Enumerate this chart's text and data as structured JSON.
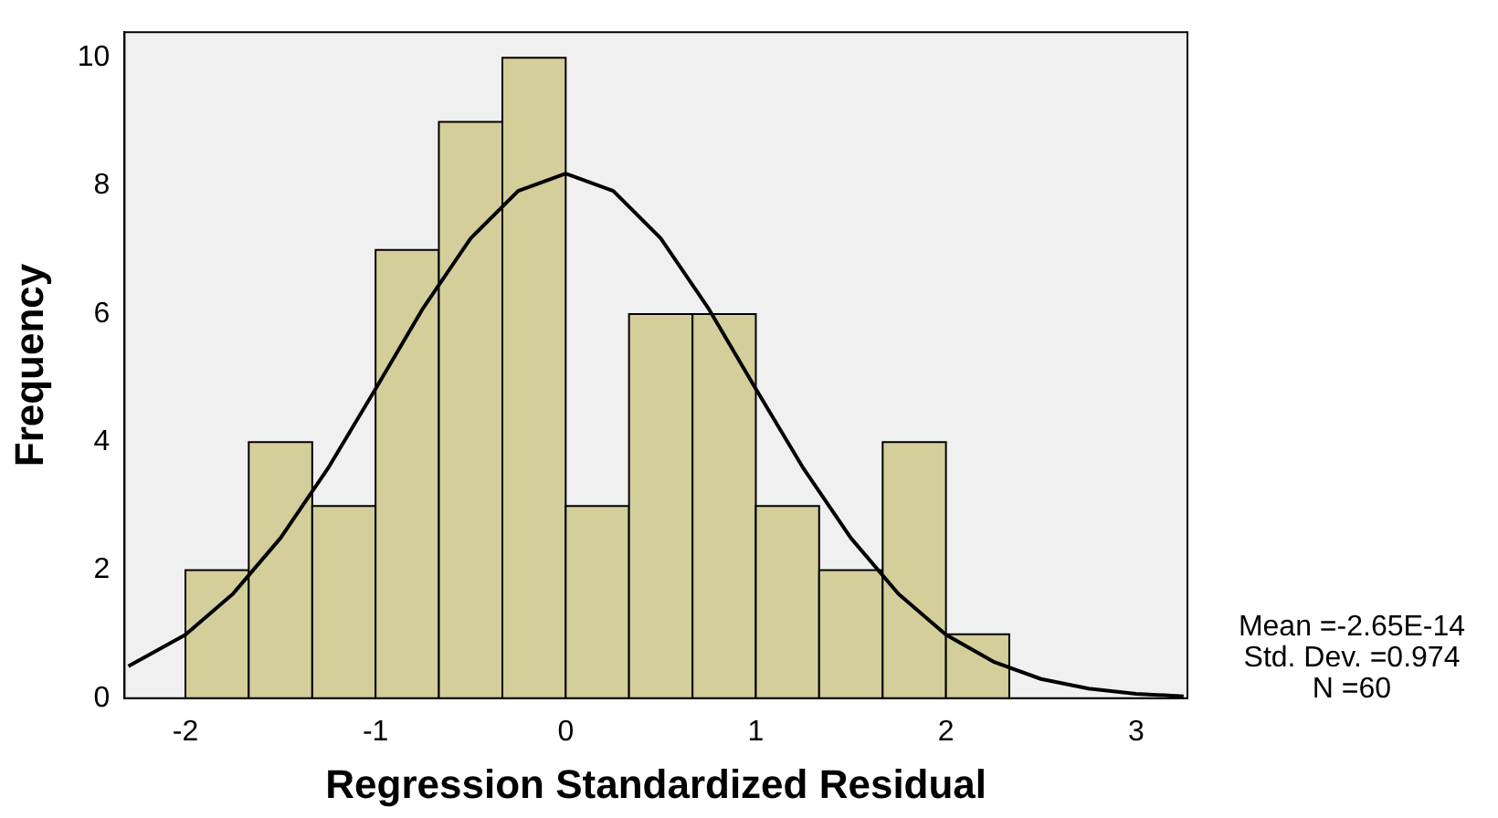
{
  "chart_data": {
    "type": "histogram",
    "xlabel": "Regression Standardized Residual",
    "ylabel": "Frequency",
    "bins": [
      -2,
      -1.667,
      -1.333,
      -1,
      -0.667,
      -0.333,
      0,
      0.333,
      0.667,
      1,
      1.333,
      1.667,
      2,
      2.333
    ],
    "values": [
      2,
      4,
      3,
      7,
      9,
      10,
      3,
      6,
      6,
      3,
      2,
      4,
      1
    ],
    "color": "#d3ce9a",
    "series": [
      {
        "type": "line",
        "color": "#000000",
        "x": [
          -2.3,
          -2,
          -1.75,
          -1.5,
          -1.25,
          -1,
          -0.75,
          -0.5,
          -0.25,
          0,
          0.25,
          0.5,
          0.75,
          1,
          1.25,
          1.5,
          1.75,
          2,
          2.25,
          2.5,
          2.75,
          3,
          3.25
        ],
        "values": [
          0.5,
          0.99,
          1.63,
          2.5,
          3.59,
          4.83,
          6.09,
          7.18,
          7.92,
          8.19,
          7.92,
          7.18,
          6.09,
          4.83,
          3.59,
          2.5,
          1.63,
          0.99,
          0.57,
          0.3,
          0.15,
          0.07,
          0.03
        ]
      }
    ],
    "xlim": [
      -2.32,
      3.27
    ],
    "xticks": [
      -2,
      -1,
      0,
      1,
      2,
      3
    ],
    "ylim": [
      0,
      10.4
    ],
    "yticks": [
      0,
      2,
      4,
      6,
      8,
      10
    ],
    "grid": false,
    "legend": false,
    "marker": "none",
    "line_style": "solid",
    "annotations": [
      "Mean =-2.65E-14",
      "Std. Dev. =0.974",
      "N =60"
    ]
  }
}
